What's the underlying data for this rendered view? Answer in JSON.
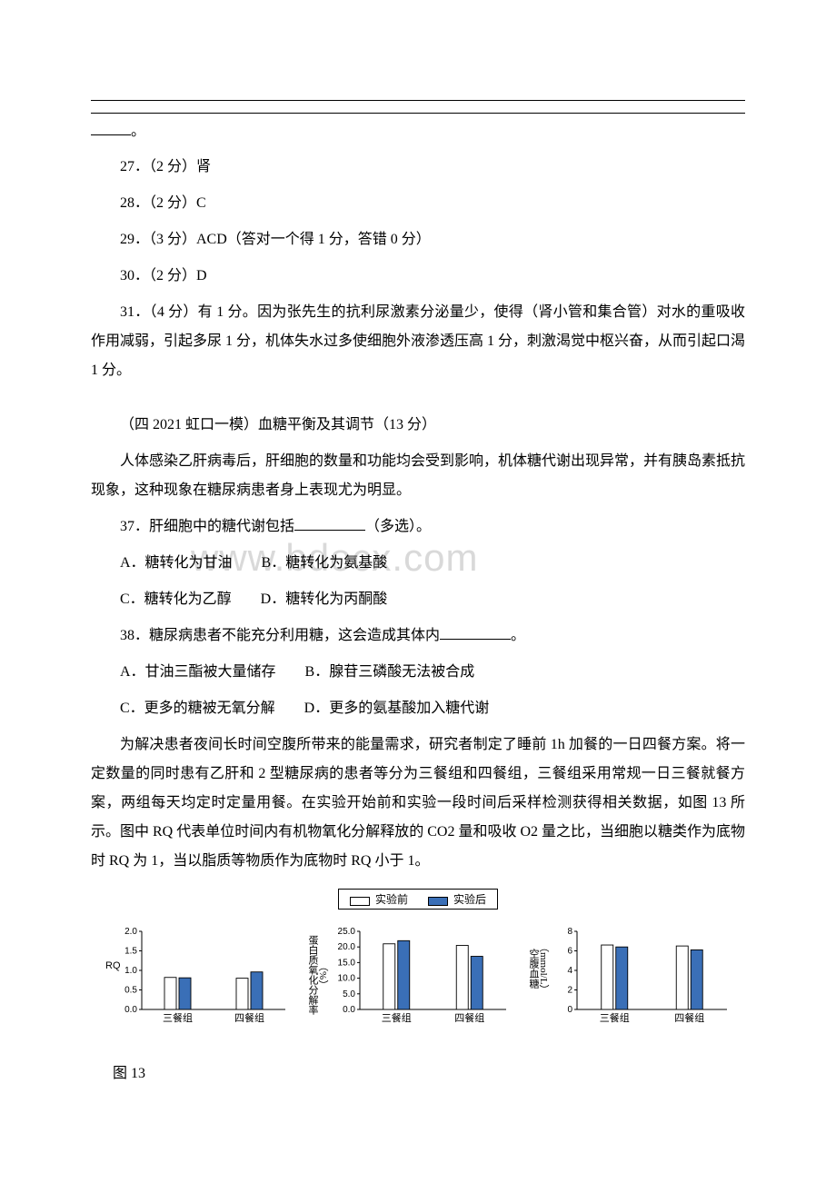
{
  "watermark_text": "www.bdocx.com",
  "blank_tail": "。",
  "answers": {
    "a27": "27．（2 分）肾",
    "a28": "28．（2 分）C",
    "a29": "29．（3 分）ACD（答对一个得 1 分，答错 0 分）",
    "a30": "30．（2 分）D",
    "a31": "31．（4 分）有 1 分。因为张先生的抗利尿激素分泌量少，使得（肾小管和集合管）对水的重吸收作用减弱，引起多尿 1 分，机体失水过多使细胞外液渗透压高 1 分，刺激渴觉中枢兴奋，从而引起口渴 1 分。"
  },
  "section_header": "（四 2021 虹口一模）血糖平衡及其调节（13 分）",
  "intro": "人体感染乙肝病毒后，肝细胞的数量和功能均会受到影响，机体糖代谢出现异常，并有胰岛素抵抗现象，这种现象在糖尿病患者身上表现尤为明显。",
  "q37": {
    "stem_prefix": "37．肝细胞中的糖代谢包括",
    "stem_suffix": "（多选）。",
    "line1": "A．糖转化为甘油　　B．糖转化为氨基酸",
    "line2": "C．糖转化为乙醇　　D．糖转化为丙酮酸"
  },
  "q38": {
    "stem_prefix": "38．糖尿病患者不能充分利用糖，这会造成其体内",
    "stem_suffix": "。",
    "line1": "A．甘油三酯被大量储存　　B．腺苷三磷酸无法被合成",
    "line2": "C．更多的糖被无氧分解　　D．更多的氨基酸加入糖代谢"
  },
  "study_text": "为解决患者夜间长时间空腹所带来的能量需求，研究者制定了睡前 1h 加餐的一日四餐方案。将一定数量的同时患有乙肝和 2 型糖尿病的患者等分为三餐组和四餐组，三餐组采用常规一日三餐就餐方案，两组每天均定时定量用餐。在实验开始前和实验一段时间后采样检测获得相关数据，如图 13 所示。图中 RQ 代表单位时间内有机物氧化分解释放的 CO2 量和吸收 O2 量之比，当细胞以糖类作为底物时 RQ 为 1，当以脂质等物质作为底物时 RQ 小于 1。",
  "legend": {
    "before": "实验前",
    "after": "实验后",
    "fill_before": "#ffffff",
    "fill_after": "#3a6fb7"
  },
  "fig_label": "图 13",
  "charts": {
    "cat_labels": [
      "三餐组",
      "四餐组"
    ],
    "axis_color": "#000000",
    "chart1": {
      "ylabel": "RQ",
      "ymax": 2.0,
      "yticks": [
        0,
        0.5,
        1.0,
        1.5,
        2.0
      ],
      "data": {
        "g1_pre": 0.82,
        "g1_post": 0.81,
        "g2_pre": 0.8,
        "g2_post": 0.96
      }
    },
    "chart2": {
      "ylabel_lines": [
        "蛋白质氧化分解率",
        "（%）"
      ],
      "ymax": 25.0,
      "yticks": [
        0,
        5.0,
        10.0,
        15.0,
        20.0,
        25.0
      ],
      "data": {
        "g1_pre": 21.0,
        "g1_post": 22.0,
        "g2_pre": 20.5,
        "g2_post": 17.0
      }
    },
    "chart3": {
      "ylabel_lines": [
        "空腹血糖",
        "（mmol/L）"
      ],
      "ymax": 8.0,
      "yticks": [
        0,
        2.0,
        4.0,
        6.0,
        8.0
      ],
      "data": {
        "g1_pre": 6.6,
        "g1_post": 6.4,
        "g2_pre": 6.5,
        "g2_post": 6.1
      }
    }
  }
}
